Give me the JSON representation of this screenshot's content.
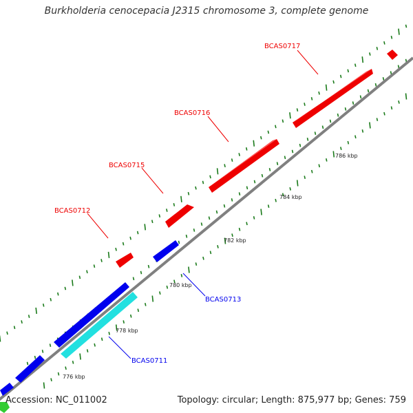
{
  "title": "Burkholderia cenocepacia J2315 chromosome 3, complete genome",
  "colors": {
    "forward": "#ff0000",
    "reverse": "#0000ee",
    "cyan": "#22e0e0",
    "backbone": "#808080",
    "ticks": "#1a7a1a"
  },
  "genes": [
    {
      "name": "BCAS0717",
      "color": "red",
      "label": "BCAS0717"
    },
    {
      "name": "BCAS0716",
      "color": "red",
      "label": "BCAS0716"
    },
    {
      "name": "BCAS0715",
      "color": "red",
      "label": "BCAS0715"
    },
    {
      "name": "BCAS0712",
      "color": "red",
      "label": "BCAS0712"
    },
    {
      "name": "BCAS0713",
      "color": "blue",
      "label": "BCAS0713"
    },
    {
      "name": "BCAS0711",
      "color": "cyan",
      "label": "BCAS0711"
    }
  ],
  "tick_labels": [
    "786 kbp",
    "784 kbp",
    "782 kbp",
    "780 kbp",
    "778 kbp",
    "776 kbp"
  ],
  "footer": {
    "accession": "Accession: NC_011002",
    "summary": "Topology: circular; Length: 875,977 bp; Genes: 759"
  }
}
